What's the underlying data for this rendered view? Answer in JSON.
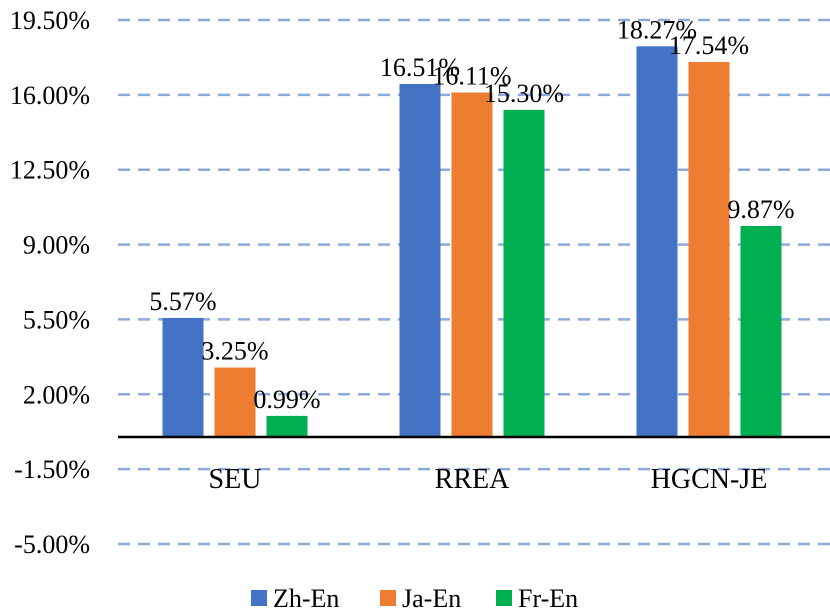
{
  "chart_data": {
    "type": "bar",
    "title": "",
    "xlabel": "",
    "ylabel": "",
    "categories": [
      "SEU",
      "RREA",
      "HGCN-JE"
    ],
    "series": [
      {
        "name": "Zh-En",
        "color": "#4472c4",
        "values": [
          5.57,
          16.51,
          18.27
        ],
        "labels": [
          "5.57%",
          "16.51%",
          "18.27%"
        ]
      },
      {
        "name": "Ja-En",
        "color": "#ed7d31",
        "values": [
          3.25,
          16.11,
          17.54
        ],
        "labels": [
          "3.25%",
          "16.11%",
          "17.54%"
        ]
      },
      {
        "name": "Fr-En",
        "color": "#00b050",
        "values": [
          0.99,
          15.3,
          9.87
        ],
        "labels": [
          "0.99%",
          "15.30%",
          "9.87%"
        ]
      }
    ],
    "ylim": [
      -5.0,
      19.5
    ],
    "yticks": [
      -5.0,
      -1.5,
      2.0,
      5.5,
      9.0,
      12.5,
      16.0,
      19.5
    ],
    "ytick_labels": [
      "-5.00%",
      "-1.50%",
      "2.00%",
      "5.50%",
      "9.00%",
      "12.50%",
      "16.00%",
      "19.50%"
    ],
    "grid": true,
    "legend_position": "bottom"
  }
}
